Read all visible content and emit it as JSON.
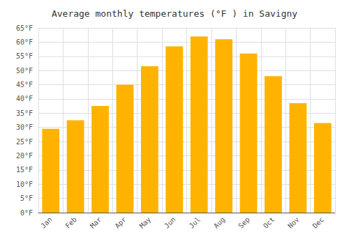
{
  "chart_data": {
    "type": "bar",
    "title": "Average monthly temperatures (°F ) in Savigny",
    "categories": [
      "Jan",
      "Feb",
      "Mar",
      "Apr",
      "May",
      "Jun",
      "Jul",
      "Aug",
      "Sep",
      "Oct",
      "Nov",
      "Dec"
    ],
    "values": [
      29.5,
      32.5,
      37.5,
      45.0,
      51.5,
      58.5,
      62.0,
      61.0,
      56.0,
      48.0,
      38.5,
      31.5
    ],
    "color": "#FFB300",
    "ylim": [
      0,
      65
    ],
    "yticks": [
      {
        "value": 0,
        "label": "0°F"
      },
      {
        "value": 5,
        "label": "5°F"
      },
      {
        "value": 10,
        "label": "10°F"
      },
      {
        "value": 15,
        "label": "15°F"
      },
      {
        "value": 20,
        "label": "20°F"
      },
      {
        "value": 25,
        "label": "25°F"
      },
      {
        "value": 30,
        "label": "30°F"
      },
      {
        "value": 35,
        "label": "35°F"
      },
      {
        "value": 40,
        "label": "40°F"
      },
      {
        "value": 45,
        "label": "45°F"
      },
      {
        "value": 50,
        "label": "50°F"
      },
      {
        "value": 55,
        "label": "55°F"
      },
      {
        "value": 60,
        "label": "60°F"
      },
      {
        "value": 65,
        "label": "65°F"
      }
    ],
    "grid": true
  }
}
